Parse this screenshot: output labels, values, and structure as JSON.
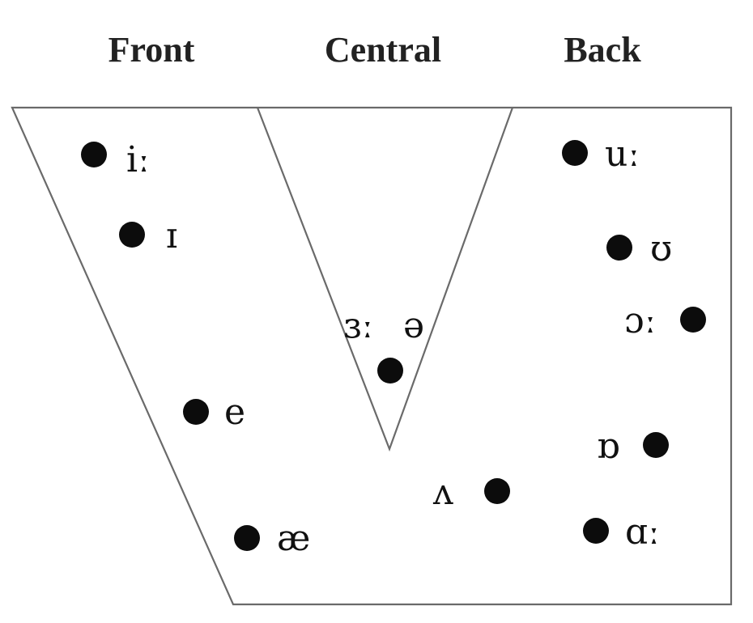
{
  "headers": {
    "front": "Front",
    "central": "Central",
    "back": "Back"
  },
  "vowels": [
    {
      "id": "i-long",
      "symbol": "iː"
    },
    {
      "id": "i-short",
      "symbol": "ɪ"
    },
    {
      "id": "e",
      "symbol": "e"
    },
    {
      "id": "ae",
      "symbol": "æ"
    },
    {
      "id": "er-long",
      "symbol": "ɜː"
    },
    {
      "id": "schwa",
      "symbol": "ə"
    },
    {
      "id": "wedge",
      "symbol": "ʌ"
    },
    {
      "id": "u-long",
      "symbol": "uː"
    },
    {
      "id": "u-short",
      "symbol": "ʊ"
    },
    {
      "id": "o-long",
      "symbol": "ɔː"
    },
    {
      "id": "o-short",
      "symbol": "ɒ"
    },
    {
      "id": "a-long",
      "symbol": "ɑː"
    }
  ]
}
